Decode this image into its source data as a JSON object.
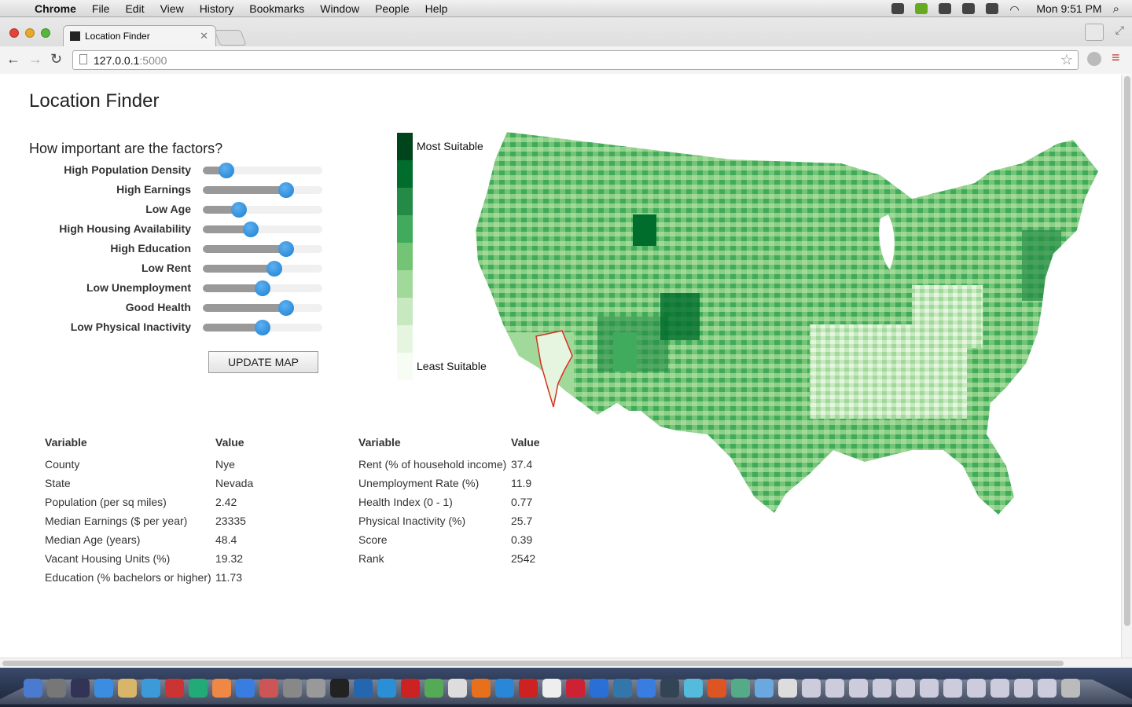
{
  "menubar": {
    "app": "Chrome",
    "items": [
      "File",
      "Edit",
      "View",
      "History",
      "Bookmarks",
      "Window",
      "People",
      "Help"
    ],
    "clock": "Mon 9:51 PM"
  },
  "browser": {
    "tab_title": "Location Finder",
    "url_host": "127.0.0.1",
    "url_port": ":5000"
  },
  "page": {
    "title": "Location Finder",
    "factors_heading": "How important are the factors?",
    "factors": [
      {
        "label": "High Population Density",
        "level": 0.2
      },
      {
        "label": "High Earnings",
        "level": 0.7
      },
      {
        "label": "Low Age",
        "level": 0.3
      },
      {
        "label": "High Housing Availability",
        "level": 0.4
      },
      {
        "label": "High Education",
        "level": 0.7
      },
      {
        "label": "Low Rent",
        "level": 0.6
      },
      {
        "label": "Low Unemployment",
        "level": 0.5
      },
      {
        "label": "Good Health",
        "level": 0.7
      },
      {
        "label": "Low Physical Inactivity",
        "level": 0.5
      }
    ],
    "update_button": "UPDATE MAP",
    "legend": {
      "top_label": "Most Suitable",
      "bottom_label": "Least Suitable",
      "colors": [
        "#00441b",
        "#006d2c",
        "#238b45",
        "#41ab5d",
        "#74c476",
        "#a1d99b",
        "#c7e9c0",
        "#e5f5e0",
        "#f7fcf5"
      ]
    },
    "table1": {
      "headers": [
        "Variable",
        "Value"
      ],
      "rows": [
        [
          "County",
          "Nye"
        ],
        [
          "State",
          "Nevada"
        ],
        [
          "Population (per sq miles)",
          "2.42"
        ],
        [
          "Median Earnings ($ per year)",
          "23335"
        ],
        [
          "Median Age (years)",
          "48.4"
        ],
        [
          "Vacant Housing Units (%)",
          "19.32"
        ],
        [
          "Education (% bachelors or higher)",
          "11.73"
        ]
      ]
    },
    "table2": {
      "headers": [
        "Variable",
        "Value"
      ],
      "rows": [
        [
          "Rent (% of household income)",
          "37.4"
        ],
        [
          "Unemployment Rate (%)",
          "11.9"
        ],
        [
          "Health Index (0 - 1)",
          "0.77"
        ],
        [
          "Physical Inactivity (%)",
          "25.7"
        ],
        [
          "Score",
          "0.39"
        ],
        [
          "Rank",
          "2542"
        ]
      ]
    }
  }
}
